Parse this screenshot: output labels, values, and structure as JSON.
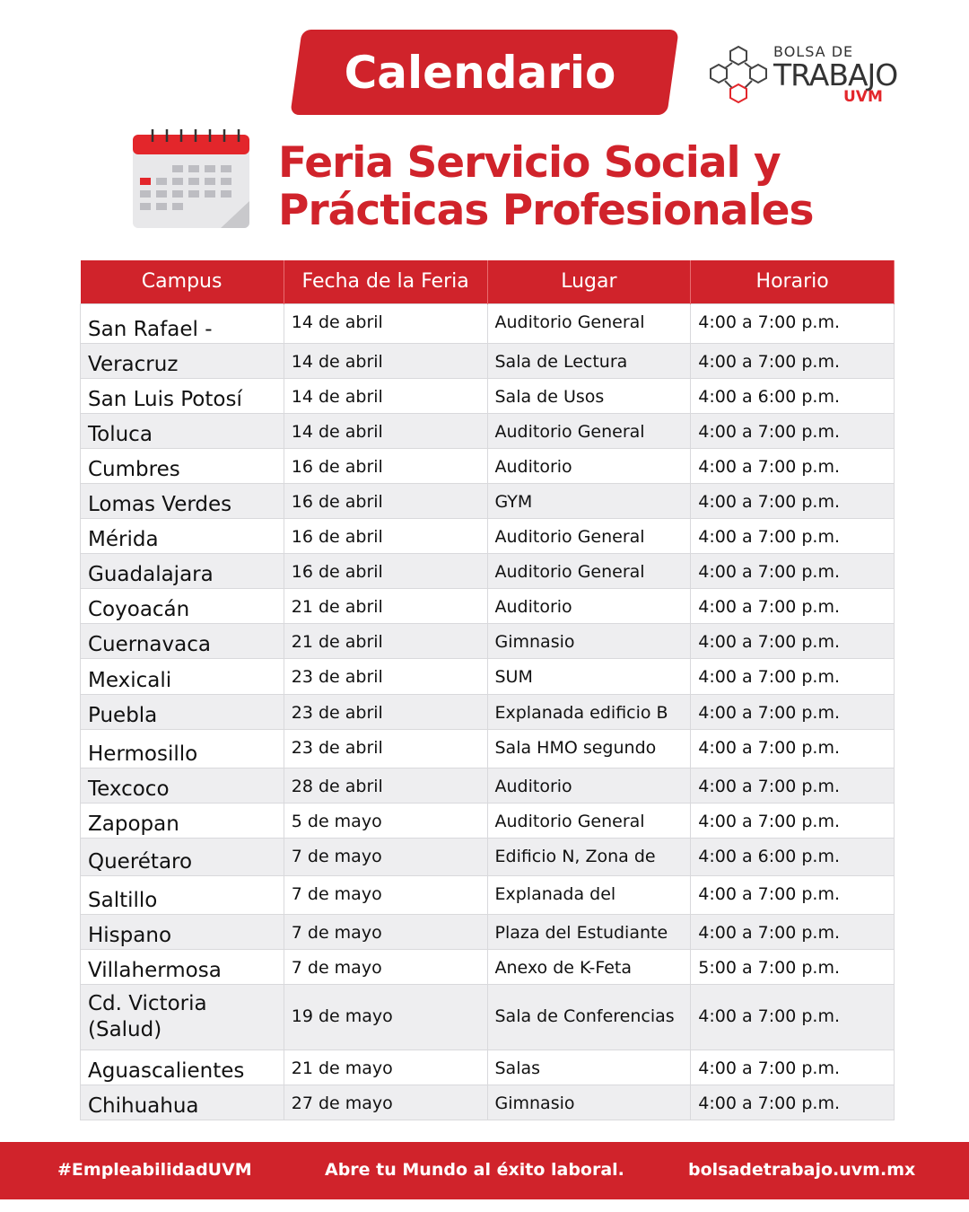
{
  "header": {
    "banner": "Calendario",
    "logo": {
      "line1": "BOLSA DE",
      "line2": "TRABAJO",
      "line3": "UVM"
    },
    "title_line1": "Feria Servicio Social y",
    "title_line2": "Prácticas Profesionales"
  },
  "colors": {
    "brand_red": "#d0232b",
    "row_alt": "#eeeef0"
  },
  "table": {
    "headers": [
      "Campus",
      "Fecha de la Feria",
      "Lugar",
      "Horario"
    ],
    "rows": [
      [
        "San Rafael -",
        "14 de abril",
        "Auditorio General",
        "4:00 a 7:00 p.m."
      ],
      [
        "Veracruz",
        "14 de abril",
        "Sala de Lectura",
        "4:00 a 7:00 p.m."
      ],
      [
        "San Luis Potosí",
        "14 de abril",
        "Sala de Usos",
        "4:00 a 6:00 p.m."
      ],
      [
        "Toluca",
        "14 de abril",
        "Auditorio General",
        "4:00 a 7:00 p.m."
      ],
      [
        "Cumbres",
        "16 de abril",
        "Auditorio",
        "4:00 a 7:00 p.m."
      ],
      [
        "Lomas Verdes",
        "16 de abril",
        "GYM",
        "4:00 a 7:00 p.m."
      ],
      [
        "Mérida",
        "16 de abril",
        "Auditorio General",
        "4:00 a 7:00 p.m."
      ],
      [
        "Guadalajara",
        "16 de abril",
        "Auditorio General",
        "4:00 a 7:00 p.m."
      ],
      [
        "Coyoacán",
        "21 de abril",
        "Auditorio",
        "4:00 a 7:00 p.m."
      ],
      [
        "Cuernavaca",
        "21 de abril",
        "Gimnasio",
        "4:00 a 7:00 p.m."
      ],
      [
        "Mexicali",
        "23 de abril",
        "SUM",
        "4:00 a 7:00 p.m."
      ],
      [
        "Puebla",
        "23 de abril",
        "Explanada edificio B",
        "4:00 a 7:00 p.m."
      ],
      [
        "Hermosillo",
        "23 de abril",
        "Sala HMO segundo",
        "4:00 a 7:00 p.m."
      ],
      [
        "Texcoco",
        "28 de abril",
        "Auditorio",
        "4:00 a 7:00 p.m."
      ],
      [
        "Zapopan",
        "5 de mayo",
        "Auditorio General",
        "4:00 a 7:00 p.m."
      ],
      [
        "Querétaro",
        "7 de mayo",
        "Edificio N, Zona de",
        "4:00 a 6:00 p.m."
      ],
      [
        "Saltillo",
        "7 de mayo",
        "Explanada del",
        "4:00 a 7:00 p.m."
      ],
      [
        "Hispano",
        "7 de mayo",
        "Plaza del Estudiante",
        "4:00 a 7:00 p.m."
      ],
      [
        "Villahermosa",
        "7 de mayo",
        "Anexo de K-Feta",
        "5:00 a 7:00 p.m."
      ],
      [
        "Cd. Victoria (Salud)",
        "19 de mayo",
        "Sala de Conferencias",
        "4:00 a 7:00 p.m."
      ],
      [
        "Aguascalientes",
        "21 de mayo",
        "Salas",
        "4:00 a 7:00 p.m."
      ],
      [
        "Chihuahua",
        "27 de mayo",
        "Gimnasio",
        "4:00 a 7:00 p.m."
      ]
    ]
  },
  "footer": {
    "hashtag": "#EmpleabilidadUVM",
    "slogan": "Abre tu Mundo al éxito laboral.",
    "website": "bolsadetrabajo.uvm.mx"
  }
}
